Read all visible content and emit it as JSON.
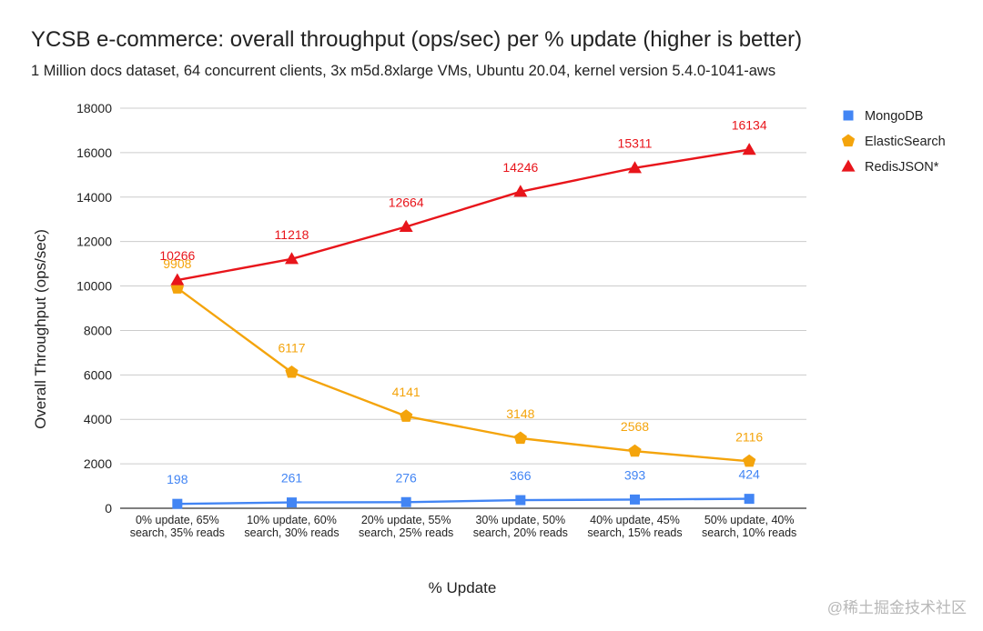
{
  "chart_data": {
    "type": "line",
    "title": "YCSB e-commerce: overall throughput (ops/sec) per % update (higher is better)",
    "subtitle": "1 Million docs dataset, 64 concurrent clients, 3x m5d.8xlarge VMs, Ubuntu 20.04, kernel version 5.4.0-1041-aws",
    "xlabel": "% Update",
    "ylabel": "Overall Throughput (ops/sec)",
    "ylim": [
      0,
      18000
    ],
    "yticks": [
      0,
      2000,
      4000,
      6000,
      8000,
      10000,
      12000,
      14000,
      16000,
      18000
    ],
    "grid": true,
    "legend_position": "right",
    "categories": [
      [
        "0% update, 65%",
        "search, 35% reads"
      ],
      [
        "10% update, 60%",
        "search, 30% reads"
      ],
      [
        "20% update, 55%",
        "search, 25% reads"
      ],
      [
        "30% update, 50%",
        "search, 20% reads"
      ],
      [
        "40% update, 45%",
        "search, 15% reads"
      ],
      [
        "50% update, 40%",
        "search, 10% reads"
      ]
    ],
    "series": [
      {
        "name": "MongoDB",
        "values": [
          198,
          261,
          276,
          366,
          393,
          424
        ],
        "color": "#4285f4",
        "marker": "square"
      },
      {
        "name": "ElasticSearch",
        "values": [
          9908,
          6117,
          4141,
          3148,
          2568,
          2116
        ],
        "color": "#f4a40c",
        "marker": "pentagon"
      },
      {
        "name": "RedisJSON*",
        "values": [
          10266,
          11218,
          12664,
          14246,
          15311,
          16134
        ],
        "color": "#e8151b",
        "marker": "triangle"
      }
    ]
  },
  "watermark": "@稀土掘金技术社区"
}
